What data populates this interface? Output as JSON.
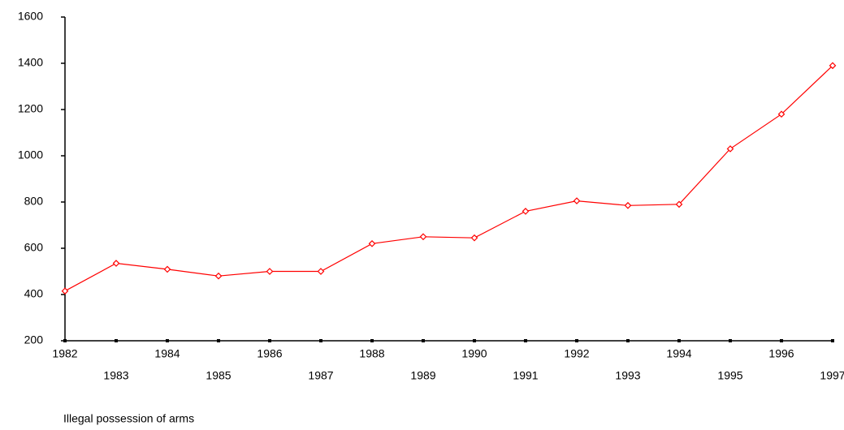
{
  "chart_data": {
    "type": "line",
    "title": "Illegal possession of arms",
    "categories": [
      "1982",
      "1983",
      "1984",
      "1985",
      "1986",
      "1987",
      "1988",
      "1989",
      "1990",
      "1991",
      "1992",
      "1993",
      "1994",
      "1995",
      "1996",
      "1997"
    ],
    "series": [
      {
        "name": "Illegal possession of arms",
        "color": "#ff0000",
        "values": [
          415,
          535,
          509,
          480,
          500,
          500,
          620,
          650,
          645,
          760,
          805,
          785,
          790,
          1030,
          1180,
          1390
        ]
      }
    ],
    "ylim": [
      200,
      1600
    ],
    "yticks": [
      200,
      400,
      600,
      800,
      1000,
      1200,
      1400,
      1600
    ],
    "grid": false
  }
}
